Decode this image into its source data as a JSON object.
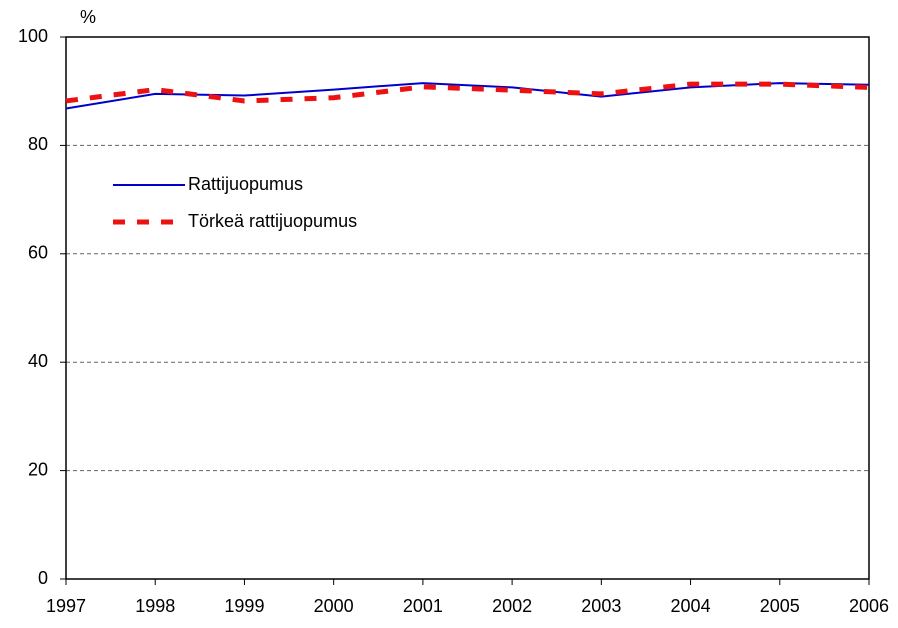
{
  "chart_data": {
    "type": "line",
    "ylabel": "%",
    "categories": [
      "1997",
      "1998",
      "1999",
      "2000",
      "2001",
      "2002",
      "2003",
      "2004",
      "2005",
      "2006"
    ],
    "series": [
      {
        "name": "Rattijuopumus",
        "color": "#0000cc",
        "dash": false,
        "values": [
          86.8,
          89.5,
          89.2,
          90.3,
          91.5,
          90.7,
          89.0,
          90.7,
          91.5,
          91.2
        ]
      },
      {
        "name": "Törkeä rattijuopumus",
        "color": "#ee1111",
        "dash": true,
        "values": [
          88.2,
          90.3,
          88.2,
          88.8,
          90.8,
          90.2,
          89.5,
          91.3,
          91.3,
          90.7
        ]
      }
    ],
    "ylim": [
      0,
      100
    ],
    "yticks": [
      0,
      20,
      40,
      60,
      80,
      100
    ],
    "grid": true,
    "legend": "upper left"
  }
}
